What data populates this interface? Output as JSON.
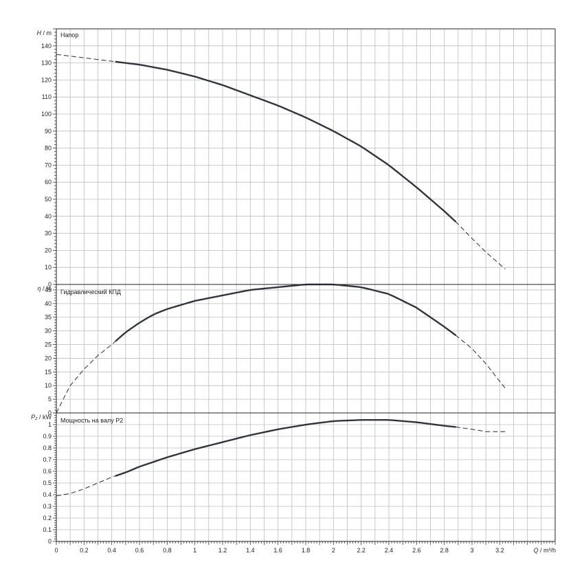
{
  "chart_data": {
    "type": "line",
    "x_axis": {
      "label_var": "Q",
      "label_unit": " / m³/h",
      "range": [
        0,
        3.6
      ],
      "major_step": 0.1,
      "tick_labels": [
        "0",
        "0.2",
        "0.4",
        "0.6",
        "0.8",
        "1",
        "1.2",
        "1.4",
        "1.6",
        "1.8",
        "2",
        "2.2",
        "2.4",
        "2.6",
        "2.8",
        "3",
        "3.2"
      ]
    },
    "panels": [
      {
        "title": "Напор",
        "y_label_var": "H",
        "y_label_unit": " / m",
        "ylim": [
          0,
          150
        ],
        "y_ticks": [
          0,
          10,
          20,
          30,
          40,
          50,
          60,
          70,
          80,
          90,
          100,
          110,
          120,
          130,
          140
        ],
        "grid": true,
        "series": {
          "x": [
            0,
            0.2,
            0.4,
            0.5,
            0.6,
            0.8,
            1.0,
            1.2,
            1.4,
            1.6,
            1.8,
            2.0,
            2.2,
            2.4,
            2.6,
            2.8,
            2.88,
            3.0,
            3.1,
            3.24
          ],
          "y": [
            135,
            133,
            131,
            130,
            129,
            126,
            122,
            117,
            111,
            105,
            98,
            90,
            81,
            70,
            57,
            43,
            37,
            27,
            19,
            9
          ],
          "solid_range": [
            0.43,
            2.88
          ]
        }
      },
      {
        "title": "Гидравлический КПД",
        "y_label_var": "η",
        "y_label_unit": " / %",
        "ylim": [
          0,
          47
        ],
        "y_ticks": [
          0,
          5,
          10,
          15,
          20,
          25,
          30,
          35,
          40,
          45
        ],
        "grid": true,
        "series": {
          "x": [
            0,
            0.1,
            0.2,
            0.3,
            0.4,
            0.5,
            0.6,
            0.7,
            0.8,
            1.0,
            1.2,
            1.4,
            1.6,
            1.8,
            2.0,
            2.2,
            2.4,
            2.6,
            2.8,
            2.88,
            3.0,
            3.1,
            3.24
          ],
          "y": [
            0,
            10,
            16,
            21,
            25,
            29.5,
            33,
            36,
            38,
            41,
            43,
            45,
            46,
            47,
            47,
            46,
            43.5,
            38.5,
            31.5,
            28.5,
            23.5,
            18,
            9
          ],
          "solid_range": [
            0.43,
            2.88
          ]
        }
      },
      {
        "title": "Мощность на валу P2",
        "y_label_var": "P₂",
        "y_label_unit": " / kW",
        "ylim": [
          0,
          1.1
        ],
        "y_ticks": [
          0,
          0.1,
          0.2,
          0.3,
          0.4,
          0.5,
          0.6,
          0.7,
          0.8,
          0.9,
          1
        ],
        "grid": true,
        "series": {
          "x": [
            0,
            0.1,
            0.2,
            0.3,
            0.4,
            0.5,
            0.6,
            0.8,
            1.0,
            1.2,
            1.4,
            1.6,
            1.8,
            2.0,
            2.2,
            2.4,
            2.6,
            2.8,
            2.88,
            3.0,
            3.1,
            3.24
          ],
          "y": [
            0.39,
            0.41,
            0.45,
            0.5,
            0.55,
            0.59,
            0.64,
            0.72,
            0.79,
            0.85,
            0.91,
            0.96,
            1.0,
            1.03,
            1.04,
            1.04,
            1.02,
            0.99,
            0.98,
            0.96,
            0.94,
            0.94
          ],
          "solid_range": [
            0.43,
            2.88
          ]
        }
      }
    ]
  }
}
